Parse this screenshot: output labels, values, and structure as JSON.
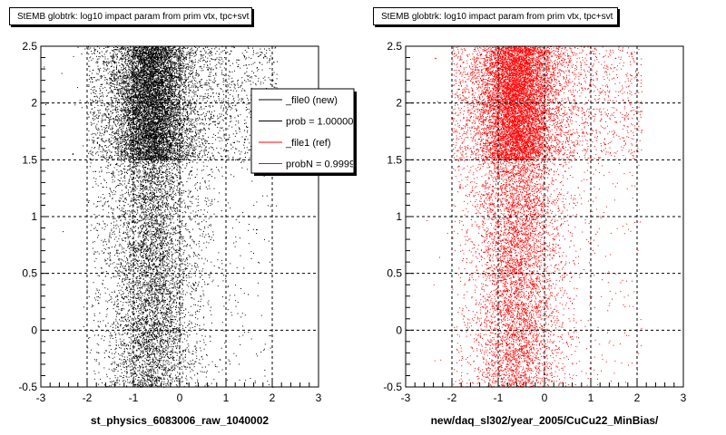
{
  "chart_data": [
    {
      "type": "scatter",
      "title": "StEMB globtrk: log10 impact param from prim vtx, tpc+svt",
      "xlabel": "st_physics_6083006_raw_1040002",
      "ylabel": "",
      "xlim": [
        -3,
        3
      ],
      "ylim": [
        -0.5,
        2.5
      ],
      "xticks": [
        "-3",
        "-2",
        "-1",
        "0",
        "1",
        "2",
        "3"
      ],
      "yticks": [
        "-0.5",
        "0",
        "0.5",
        "1",
        "1.5",
        "2",
        "2.5"
      ],
      "grid": true,
      "point_color": "#000000",
      "density": {
        "x_peak": -0.6,
        "x_core_range": [
          -1.2,
          0.1
        ],
        "x_extent": [
          -2.0,
          2.1
        ],
        "dense_band": [
          1.5,
          2.5
        ]
      },
      "legend": {
        "position": "top-right",
        "entries": [
          {
            "label": "_file0 (new)",
            "color": "#000000"
          },
          {
            "label": "prob = 1.000000",
            "color": "#000000"
          },
          {
            "label": "_file1 (ref)",
            "color": "#ff0000"
          },
          {
            "label": "probN = 0.999925",
            "color": "#ff0000"
          }
        ]
      }
    },
    {
      "type": "scatter",
      "title": "StEMB globtrk: log10 impact param from prim vtx, tpc+svt",
      "xlabel": "new/daq_sl302/year_2005/CuCu22_MinBias/",
      "ylabel": "",
      "xlim": [
        -3,
        3
      ],
      "ylim": [
        -0.5,
        2.5
      ],
      "xticks": [
        "-3",
        "-2",
        "-1",
        "0",
        "1",
        "2",
        "3"
      ],
      "yticks": [
        "-0.5",
        "0",
        "0.5",
        "1",
        "1.5",
        "2",
        "2.5"
      ],
      "grid": true,
      "point_color": "#ff0000",
      "density": {
        "x_peak": -0.6,
        "x_core_range": [
          -1.2,
          0.1
        ],
        "x_extent": [
          -2.0,
          2.1
        ],
        "dense_band": [
          1.5,
          2.5
        ]
      }
    }
  ]
}
